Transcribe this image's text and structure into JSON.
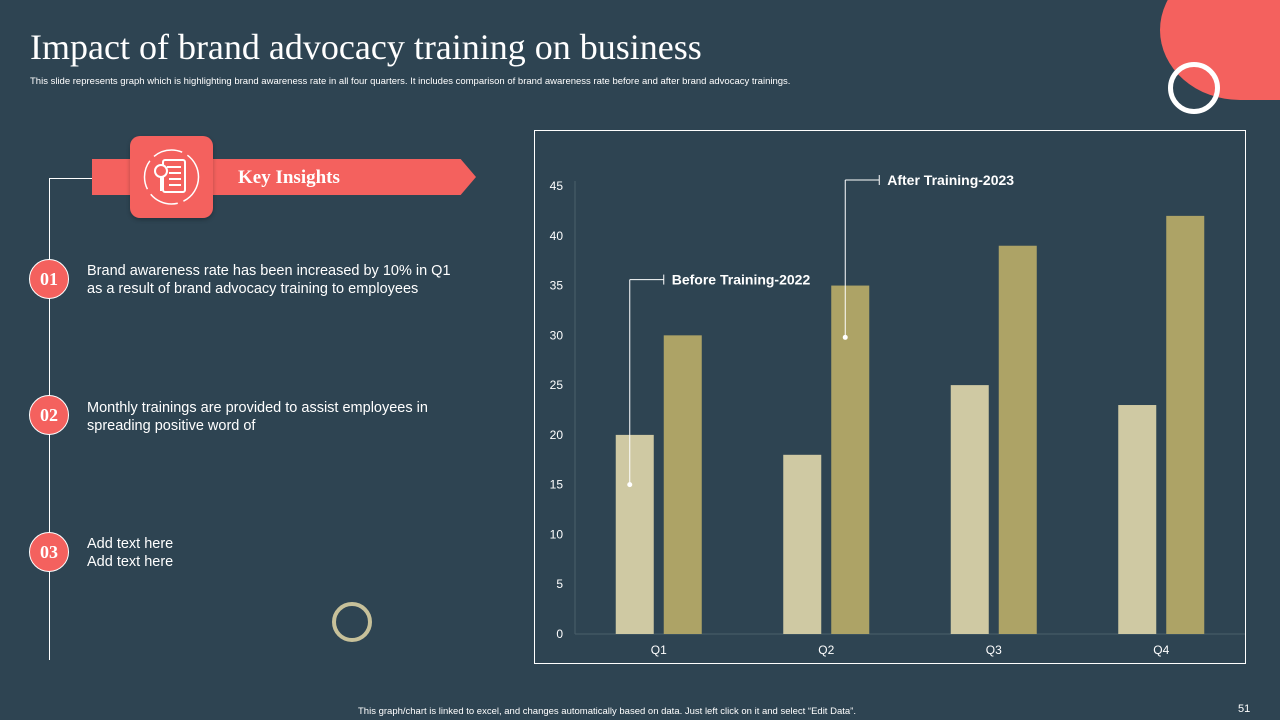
{
  "header": {
    "title": "Impact of brand advocacy training on business",
    "subtitle": "This slide represents graph which is highlighting brand awareness rate in all four quarters. It includes comparison of brand awareness rate before and after brand advocacy trainings."
  },
  "insights": {
    "banner_label": "Key Insights",
    "icon": "checklist-document-icon",
    "items": [
      {
        "number": "01",
        "text": "Brand awareness rate has been increased by 10% in Q1 as a result of brand advocacy training to employees"
      },
      {
        "number": "02",
        "text": "Monthly trainings are provided to assist employees in spreading positive word of"
      },
      {
        "number": "03",
        "text": "Add text here\nAdd text here"
      }
    ]
  },
  "colors": {
    "background": "#2e4452",
    "accent": "#f4615e",
    "before_series": "#cfc9a3",
    "after_series": "#ada366"
  },
  "chart_data": {
    "type": "bar",
    "categories": [
      "Q1",
      "Q2",
      "Q3",
      "Q4"
    ],
    "series": [
      {
        "name": "Before Training-2022",
        "values": [
          20,
          18,
          25,
          23
        ]
      },
      {
        "name": "After Training-2023",
        "values": [
          30,
          35,
          39,
          42
        ]
      }
    ],
    "ylim": [
      0,
      45
    ],
    "yticks": [
      0,
      5,
      10,
      15,
      20,
      25,
      30,
      35,
      40,
      45
    ],
    "grid": false,
    "legend": "callouts"
  },
  "footer": {
    "note": "This graph/chart is linked to excel, and changes automatically based on data. Just left click on it and select “Edit Data”.",
    "page_number": "51"
  }
}
